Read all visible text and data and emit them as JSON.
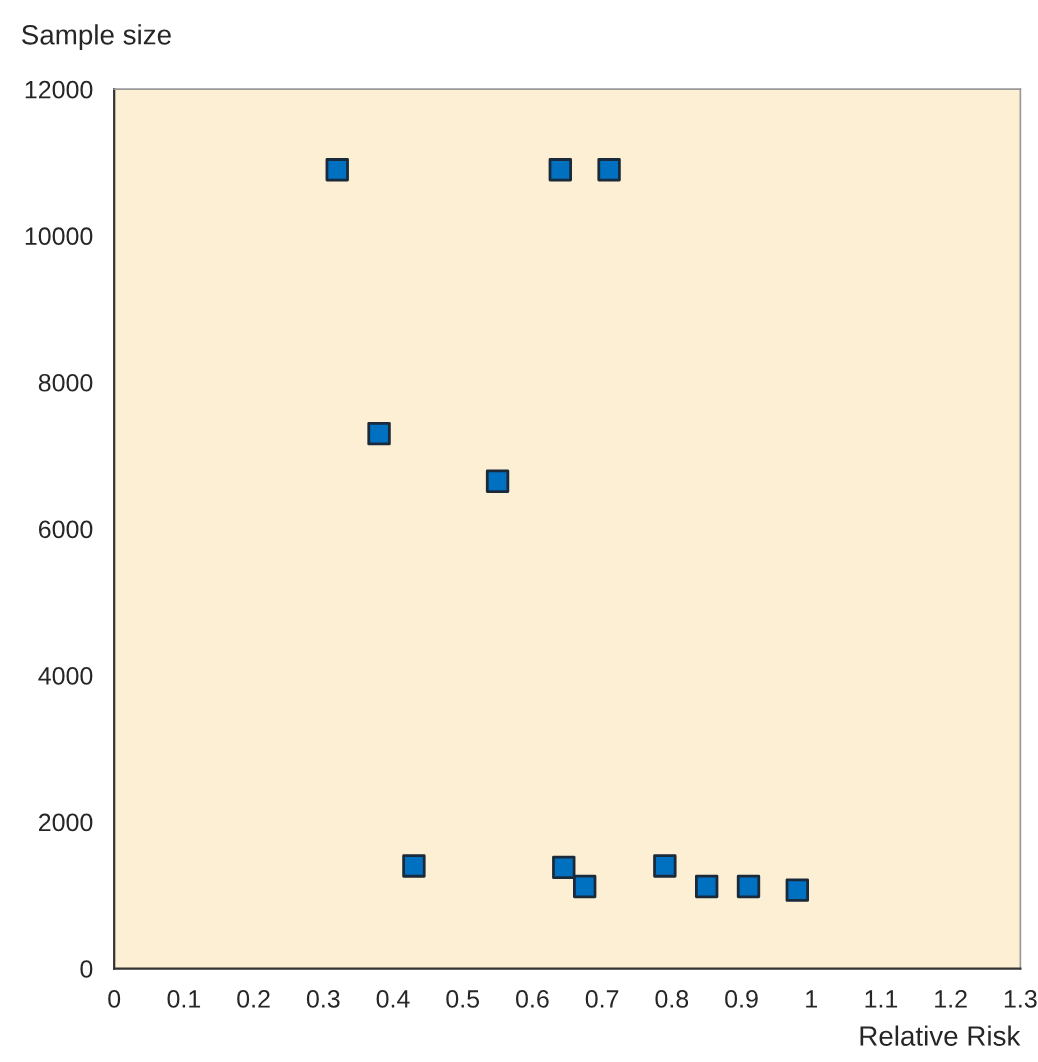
{
  "chart_data": {
    "type": "scatter",
    "xlabel": "Relative Risk",
    "ylabel": "Sample size",
    "x": [
      0.32,
      0.64,
      0.71,
      0.38,
      0.55,
      0.43,
      0.645,
      0.675,
      0.79,
      0.85,
      0.91,
      0.98
    ],
    "series": [
      {
        "color": "#0070c0",
        "values": [
          10900,
          10900,
          10900,
          7300,
          6650,
          1400,
          1380,
          1120,
          1400,
          1120,
          1120,
          1070
        ]
      }
    ],
    "xlim": [
      0,
      1.3
    ],
    "xticks": [
      0,
      0.1,
      0.2,
      0.3,
      0.4,
      0.5,
      0.6,
      0.7,
      0.8,
      0.9,
      1,
      1.1,
      1.2,
      1.3
    ],
    "ylim": [
      0,
      12000
    ],
    "yticks": [
      0,
      2000,
      4000,
      6000,
      8000,
      10000,
      12000
    ],
    "marker": "square",
    "grid": false
  }
}
